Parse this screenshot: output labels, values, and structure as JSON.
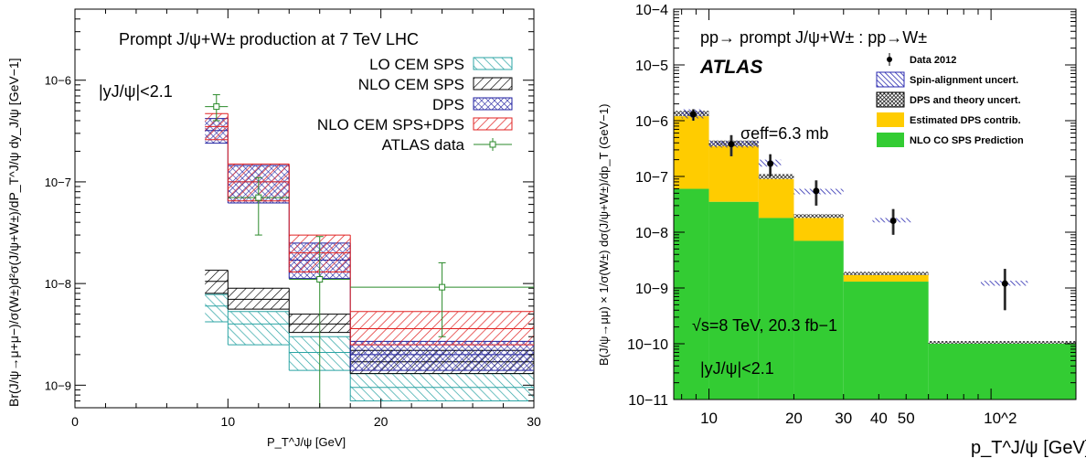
{
  "chart_data": [
    {
      "type": "bar",
      "title": "Prompt J/ψ+W± production at 7 TeV LHC",
      "annotation": "|yJ/ψ|<2.1",
      "xlabel": "P_T^J/ψ [GeV]",
      "ylabel": "Br(J/ψ→μ+μ−)/σ(W±)d²σ(J/ψ+W±)/dP_T^J/ψ dy_J/ψ [GeV−1]",
      "xlim": [
        0,
        30
      ],
      "ylim": [
        6e-10,
        5e-06
      ],
      "yscale": "log",
      "xticks": [
        "0",
        "10",
        "20",
        "30"
      ],
      "yticks": [
        {
          "v": 1e-09,
          "label": "10−9"
        },
        {
          "v": 1e-08,
          "label": "10−8"
        },
        {
          "v": 1e-07,
          "label": "10−7"
        },
        {
          "v": 1e-06,
          "label": "10−6"
        }
      ],
      "bins": [
        [
          8.5,
          10
        ],
        [
          10,
          14
        ],
        [
          14,
          18
        ],
        [
          18,
          30
        ]
      ],
      "series": [
        {
          "name": "LO CEM SPS",
          "color": "#2ba4a4",
          "hatch": "diag-right",
          "lo": [
            4.2e-09,
            2.5e-09,
            1.4e-09,
            7e-10
          ],
          "hi": [
            7.8e-09,
            5.3e-09,
            3e-09,
            1.3e-09
          ],
          "center": [
            6e-09,
            4e-09,
            2.1e-09,
            9.5e-10
          ]
        },
        {
          "name": "NLO CEM SPS",
          "color": "#000000",
          "hatch": "diag-left",
          "lo": [
            8e-09,
            5.6e-09,
            3.3e-09,
            1.3e-09
          ],
          "hi": [
            1.35e-08,
            9e-09,
            5e-09,
            2.2e-09
          ],
          "center": [
            1.05e-08,
            7e-09,
            4e-09,
            1.7e-09
          ]
        },
        {
          "name": "DPS",
          "color": "#2020a0",
          "hatch": "cross",
          "lo": [
            2.4e-07,
            6.2e-08,
            1.12e-08,
            1.4e-09
          ],
          "hi": [
            4.2e-07,
            1.45e-07,
            2.5e-08,
            2.7e-09
          ],
          "center": [
            3.2e-07,
            1e-07,
            1.7e-08,
            2e-09
          ]
        },
        {
          "name": "NLO CEM SPS+DPS",
          "color": "#e02020",
          "hatch": "diag-left",
          "lo": [
            2.6e-07,
            6.5e-08,
            1.3e-08,
            2.5e-09
          ],
          "hi": [
            4.7e-07,
            1.5e-07,
            3e-08,
            5.3e-09
          ],
          "center": [
            3.5e-07,
            1e-07,
            2e-08,
            3.6e-09
          ]
        }
      ],
      "data": {
        "name": "ATLAS data",
        "color": "#2a8a2a",
        "points": [
          {
            "x": 9.25,
            "xlo": 8.5,
            "xhi": 10,
            "y": 5.5e-07,
            "ylo": 4e-07,
            "yhi": 7.2e-07
          },
          {
            "x": 12,
            "xlo": 10,
            "xhi": 14,
            "y": 7e-08,
            "ylo": 3e-08,
            "yhi": 1.1e-07
          },
          {
            "x": 16,
            "xlo": 14,
            "xhi": 18,
            "y": 1.1e-08,
            "ylo": 6e-10,
            "yhi": 2.9e-08
          },
          {
            "x": 24,
            "xlo": 18,
            "xhi": 30,
            "y": 9.2e-09,
            "ylo": 3e-09,
            "yhi": 1.6e-08
          }
        ]
      }
    },
    {
      "type": "area",
      "title": "pp→ prompt J/ψ+W± : pp→W±",
      "brand": "ATLAS",
      "annotations": [
        "σeff=6.3 mb",
        "√s=8 TeV, 20.3 fb−1",
        "|yJ/ψ|<2.1"
      ],
      "xlabel": "p_T^J/ψ [GeV]",
      "ylabel": "B(J/ψ→μμ) × 1/σ(W±) dσ(J/ψ+W±)/dp_T (GeV−1)",
      "xscale": "log",
      "yscale": "log",
      "xlim": [
        7.5,
        200
      ],
      "ylim": [
        1e-11,
        0.0001
      ],
      "xticks": [
        {
          "v": 10,
          "label": "10"
        },
        {
          "v": 20,
          "label": "20"
        },
        {
          "v": 30,
          "label": "30"
        },
        {
          "v": 40,
          "label": "40"
        },
        {
          "v": 50,
          "label": "50"
        },
        {
          "v": 100,
          "label": "10^2"
        }
      ],
      "yticks": [
        {
          "v": 1e-11,
          "label": "10−11"
        },
        {
          "v": 1e-10,
          "label": "10−10"
        },
        {
          "v": 1e-09,
          "label": "10−9"
        },
        {
          "v": 1e-08,
          "label": "10−8"
        },
        {
          "v": 1e-07,
          "label": "10−7"
        },
        {
          "v": 1e-06,
          "label": "10−6"
        },
        {
          "v": 1e-05,
          "label": "10−5"
        },
        {
          "v": 0.0001,
          "label": "10−4"
        }
      ],
      "legend": [
        "Data 2012",
        "Spin-alignment uncert.",
        "DPS and theory uncert.",
        "Estimated DPS contrib.",
        "NLO CO SPS Prediction"
      ],
      "colors": {
        "sps": "#33cc33",
        "dps": "#ffcc00",
        "data": "#000000",
        "spin": "#2b2bb0"
      },
      "bins": [
        [
          7.5,
          10
        ],
        [
          10,
          15
        ],
        [
          15,
          20
        ],
        [
          20,
          30
        ],
        [
          30,
          60
        ],
        [
          60,
          200
        ]
      ],
      "sps": [
        6e-08,
        3.5e-08,
        1.8e-08,
        7e-09,
        1.3e-09,
        1e-10
      ],
      "total": [
        1.2e-06,
        3.5e-07,
        9e-08,
        1.8e-08,
        1.7e-09,
        1e-10
      ],
      "total_unc_hi": [
        1.5e-06,
        4.4e-07,
        1.1e-07,
        2.1e-08,
        1.95e-09,
        1e-10
      ],
      "points": [
        {
          "x": 8.8,
          "y": 1.3e-06,
          "ylo": 1e-06,
          "yhi": 1.6e-06,
          "xlo": 8.0,
          "xhi": 9.6,
          "spin_lo": 1.1e-06,
          "spin_hi": 1.6e-06
        },
        {
          "x": 12,
          "y": 3.8e-07,
          "ylo": 2.3e-07,
          "yhi": 5.5e-07,
          "xlo": 10,
          "xhi": 15,
          "spin_lo": 3.3e-07,
          "spin_hi": 4.3e-07
        },
        {
          "x": 16.5,
          "y": 1.7e-07,
          "ylo": 1e-07,
          "yhi": 2.5e-07,
          "xlo": 15,
          "xhi": 18,
          "spin_lo": 1.5e-07,
          "spin_hi": 2e-07
        },
        {
          "x": 24,
          "y": 5.5e-08,
          "ylo": 3e-08,
          "yhi": 8.5e-08,
          "xlo": 20,
          "xhi": 30,
          "spin_lo": 4.8e-08,
          "spin_hi": 6e-08
        },
        {
          "x": 45,
          "y": 1.6e-08,
          "ylo": 9e-09,
          "yhi": 2.6e-08,
          "xlo": 38,
          "xhi": 52,
          "spin_lo": 1.5e-08,
          "spin_hi": 1.8e-08
        },
        {
          "x": 112,
          "y": 1.2e-09,
          "ylo": 4e-10,
          "yhi": 2.2e-09,
          "xlo": 92,
          "xhi": 135,
          "spin_lo": 1.1e-09,
          "spin_hi": 1.35e-09
        }
      ]
    }
  ]
}
